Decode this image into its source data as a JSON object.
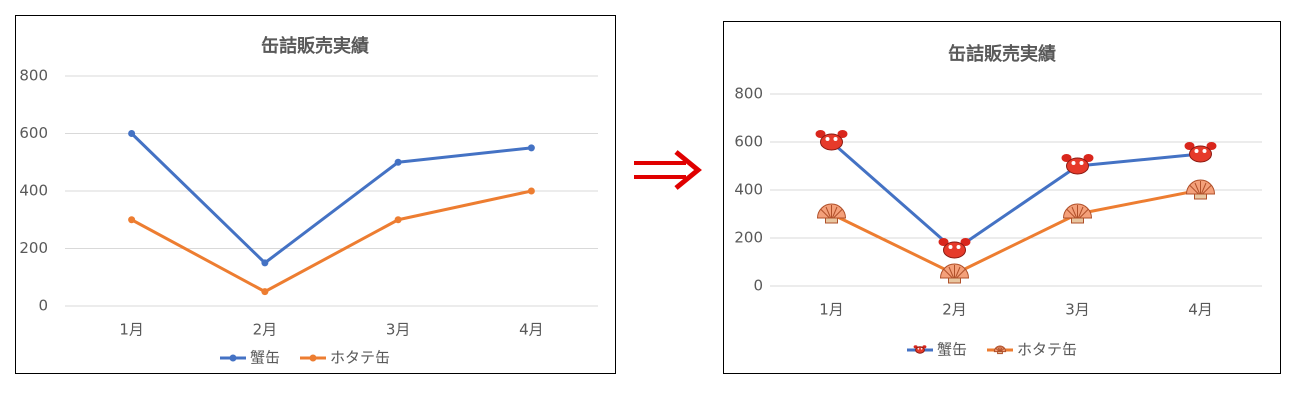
{
  "chart_data": [
    {
      "type": "line",
      "title": "缶詰販売実績",
      "categories": [
        "1月",
        "2月",
        "3月",
        "4月"
      ],
      "series": [
        {
          "name": "蟹缶",
          "color": "#4472c4",
          "values": [
            600,
            150,
            500,
            550
          ]
        },
        {
          "name": "ホタテ缶",
          "color": "#ed7d31",
          "values": [
            300,
            50,
            300,
            400
          ]
        }
      ],
      "ylim": [
        0,
        800
      ],
      "yticks": [
        0,
        200,
        400,
        600,
        800
      ],
      "grid": true,
      "legend": "bottom",
      "marker_style": "dot"
    },
    {
      "type": "line",
      "title": "缶詰販売実績",
      "categories": [
        "1月",
        "2月",
        "3月",
        "4月"
      ],
      "series": [
        {
          "name": "蟹缶",
          "color": "#4472c4",
          "values": [
            600,
            150,
            500,
            550
          ]
        },
        {
          "name": "ホタテ缶",
          "color": "#ed7d31",
          "values": [
            300,
            50,
            300,
            400
          ]
        }
      ],
      "ylim": [
        0,
        800
      ],
      "yticks": [
        0,
        200,
        400,
        600,
        800
      ],
      "grid": true,
      "legend": "bottom",
      "marker_style": "picture"
    }
  ]
}
